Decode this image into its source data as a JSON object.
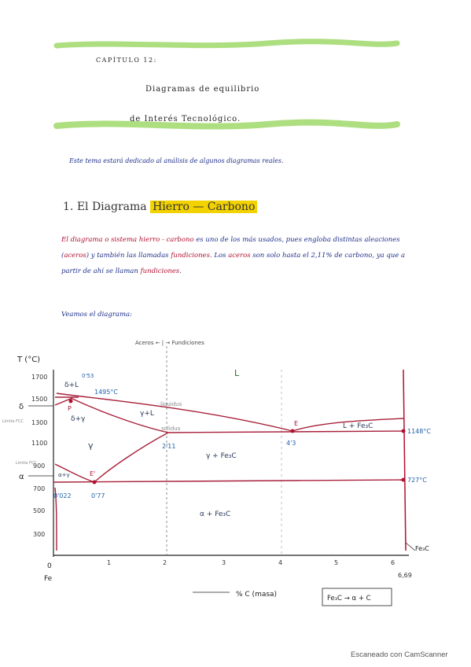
{
  "colors": {
    "highlight_green": "#9fd86a",
    "ink_blue": "#1f2f8a",
    "ink_red": "#b01030",
    "title_yellow": "#f2d200",
    "line_red": "#a8203a"
  },
  "header": {
    "chapter": "CAPÍTULO 12:",
    "title_line1": "Diagramas de equilibrio",
    "title_line2": "de Interés Tecnológico."
  },
  "intro": "Este tema estará dedicado al análisis de algunos diagramas reales.",
  "section": {
    "number": "1.",
    "prefix": "El Diagrama",
    "highlight": "Hierro — Carbono"
  },
  "paragraph": {
    "p1": "El diagrama o sistema hierro - carbono",
    "p2": " es uno de los más usados, pues engloba distintas aleaciones (",
    "p3": "aceros",
    "p4": ") y también las llamadas ",
    "p5": "fundiciones",
    "p6": ". Los ",
    "p7": "aceros",
    "p8": " son solo hasta el 2,11% de carbono, ya que a partir de ahí se llaman ",
    "p9": "fundiciones",
    "p10": "."
  },
  "intro2": "Veamos el diagrama:",
  "diagram": {
    "top_note": "Aceros ← | → Fundiciones",
    "y_axis_label": "T (°C)",
    "x_axis_origin": "0",
    "x_axis_fe": "Fe",
    "x_axis_label": "% C (masa)",
    "y_ticks": [
      "1700",
      "1500",
      "1300",
      "1100",
      "900",
      "700",
      "500",
      "300"
    ],
    "x_ticks": [
      "1",
      "2",
      "3",
      "4",
      "5",
      "6"
    ],
    "x_end": "6,69",
    "regions": {
      "L": "L",
      "delta_L": "δ+L",
      "delta_gamma": "δ+γ",
      "gamma_L": "γ+L",
      "L_Fe3C": "L + Fe₃C",
      "gamma": "γ",
      "gamma_Fe3C": "γ + Fe₃C",
      "alpha_gamma": "α+γ",
      "alpha_Fe3C": "α + Fe₃C"
    },
    "labels": {
      "liquidus": "liquidus",
      "solidus": "solidus",
      "delta": "δ",
      "alpha": "α",
      "curie": "Límite FCC",
      "curie2": "Límite FCC",
      "fe3c": "Fe₃C",
      "p_0_53": "0'53",
      "t_1495": "1495°C",
      "p_2_11": "2'11",
      "p_4_3": "4'3",
      "t_1148": "1148°C",
      "t_727": "727°C",
      "p_0_022": "0'022",
      "p_0_77": "0'77",
      "pt_P": "P",
      "pt_E": "E",
      "pt_Ep": "E'"
    },
    "box_reaction": "Fe₃C → α + C"
  },
  "footer": "Escaneado con CamScanner"
}
